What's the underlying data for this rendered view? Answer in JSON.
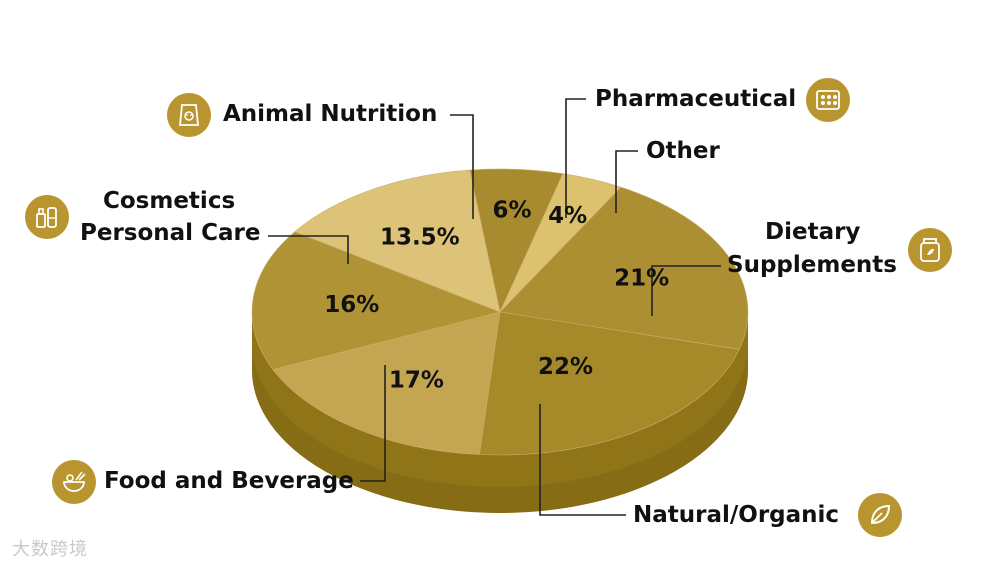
{
  "chart_data": {
    "type": "pie",
    "slices": [
      {
        "label": "Pharmaceutical",
        "value": 6,
        "value_label": "6%",
        "color": "#a88b2e"
      },
      {
        "label": "Other",
        "value": 4,
        "value_label": "4%",
        "color": "#dcc26e"
      },
      {
        "label": "Dietary Supplements",
        "value": 21,
        "value_label": "21%",
        "color": "#ad8f33"
      },
      {
        "label": "Natural/Organic",
        "value": 22,
        "value_label": "22%",
        "color": "#a68928"
      },
      {
        "label": "Food and Beverage",
        "value": 17,
        "value_label": "17%",
        "color": "#c3a552"
      },
      {
        "label": "Cosmetics Personal Care",
        "value": 16,
        "value_label": "16%",
        "color": "#b09335"
      },
      {
        "label": "Animal Nutrition",
        "value": 13.5,
        "value_label": "13.5%",
        "color": "#dcc378"
      }
    ]
  },
  "labels": {
    "pharmaceutical": "Pharmaceutical",
    "other": "Other",
    "dietary_line1": "Dietary",
    "dietary_line2": "Supplements",
    "natural": "Natural/Organic",
    "food": "Food and Beverage",
    "cosmetics_line1": "Cosmetics",
    "cosmetics_line2": "Personal Care",
    "animal": "Animal Nutrition"
  },
  "watermark": "大数跨境",
  "icons": {
    "pharmaceutical": "pill-blister-icon",
    "dietary": "supplement-jar-icon",
    "natural": "leaf-icon",
    "food": "food-bowl-icon",
    "cosmetics": "cosmetics-bottles-icon",
    "animal": "pet-food-bag-icon"
  },
  "colors": {
    "accent": "#b8952f",
    "side": "#8f7418"
  }
}
